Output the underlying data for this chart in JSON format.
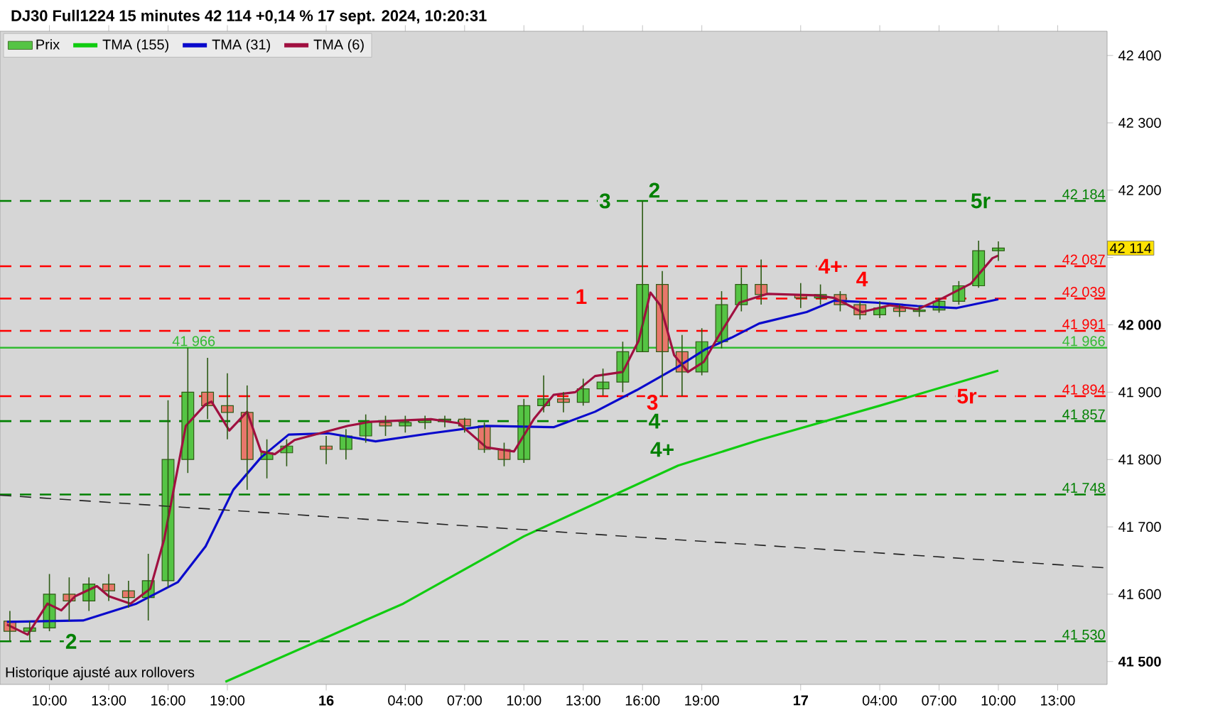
{
  "chart_data": {
    "type": "candlestick",
    "title": "DJ30 Full1224 15 minutes 42 114 +0,14 % 17 sept. 2024, 10:20:31",
    "annotations": [
      "Historique ajusté aux rollovers",
      "42 114",
      {
        "text": "41 966",
        "x": "2024-09-15T17:18",
        "y": 41966
      },
      {
        "text": "2",
        "x": "2024-09-15T11:06",
        "y": 41530
      },
      {
        "text": "3",
        "x": "2024-09-16T14:06",
        "y": 42184
      },
      {
        "text": "2",
        "x": "2024-09-16T16:36",
        "y": 42200
      },
      {
        "text": "1",
        "x": "2024-09-16T12:54",
        "y": 42042
      },
      {
        "text": "3",
        "x": "2024-09-16T16:30",
        "y": 41885
      },
      {
        "text": "4",
        "x": "2024-09-16T16:36",
        "y": 41857
      },
      {
        "text": "4+",
        "x": "2024-09-16T17:00",
        "y": 41815
      },
      {
        "text": "4+",
        "x": "2024-09-17T01:30",
        "y": 42087
      },
      {
        "text": "4",
        "x": "2024-09-17T03:06",
        "y": 42068
      },
      {
        "text": "5r",
        "x": "2024-09-17T09:06",
        "y": 42184
      },
      {
        "text": "5r",
        "x": "2024-09-17T08:24",
        "y": 41894
      }
    ],
    "xlim": [
      "2024-09-15T07:30",
      "2024-09-17T15:30"
    ],
    "ylim": [
      41466,
      42436
    ],
    "xticks": [
      {
        "value": "2024-09-15T10:00",
        "label": "10:00"
      },
      {
        "value": "2024-09-15T13:00",
        "label": "13:00"
      },
      {
        "value": "2024-09-15T16:00",
        "label": "16:00"
      },
      {
        "value": "2024-09-15T19:00",
        "label": "19:00"
      },
      {
        "value": "2024-09-16T00:00",
        "label": "**16**"
      },
      {
        "value": "2024-09-16T04:00",
        "label": "04:00"
      },
      {
        "value": "2024-09-16T07:00",
        "label": "07:00"
      },
      {
        "value": "2024-09-16T10:00",
        "label": "10:00"
      },
      {
        "value": "2024-09-16T13:00",
        "label": "13:00"
      },
      {
        "value": "2024-09-16T16:00",
        "label": "16:00"
      },
      {
        "value": "2024-09-16T19:00",
        "label": "19:00"
      },
      {
        "value": "2024-09-17T00:00",
        "label": "**17**"
      },
      {
        "value": "2024-09-17T04:00",
        "label": "04:00"
      },
      {
        "value": "2024-09-17T07:00",
        "label": "07:00"
      },
      {
        "value": "2024-09-17T10:00",
        "label": "10:00"
      },
      {
        "value": "2024-09-17T13:00",
        "label": "13:00"
      }
    ],
    "yticks": [
      {
        "value": 41500,
        "label": "**41 500**"
      },
      {
        "value": 41600,
        "label": "41 600"
      },
      {
        "value": 41700,
        "label": "41 700"
      },
      {
        "value": 41800,
        "label": "41 800"
      },
      {
        "value": 41900,
        "label": "41 900"
      },
      {
        "value": 42000,
        "label": "**42 000**"
      },
      {
        "value": 42100,
        "label": null
      },
      {
        "value": 42200,
        "label": "42 200"
      },
      {
        "value": 42300,
        "label": "42 300"
      },
      {
        "value": 42400,
        "label": "42 400"
      }
    ],
    "legend": "top left",
    "grid": false,
    "ref_lines": [
      {
        "axis": "y",
        "value": 42184,
        "label": "42 184",
        "color": "#008000",
        "line_style": "dashed"
      },
      {
        "axis": "y",
        "value": 42087,
        "label": "42 087",
        "color": "#ff0000",
        "line_style": "dashed"
      },
      {
        "axis": "y",
        "value": 42039,
        "label": "42 039",
        "color": "#ff0000",
        "line_style": "dashed"
      },
      {
        "axis": "y",
        "value": 41991,
        "label": "41 991",
        "color": "#ff0000",
        "line_style": "dashed"
      },
      {
        "axis": "y",
        "value": 41966,
        "label": "41 966",
        "color": "#33bb33",
        "line_style": "solid"
      },
      {
        "axis": "y",
        "value": 41894,
        "label": "41 894",
        "color": "#ff0000",
        "line_style": "dashed"
      },
      {
        "axis": "y",
        "value": 41857,
        "label": "41 857",
        "color": "#008000",
        "line_style": "dashed"
      },
      {
        "axis": "y",
        "value": 41748,
        "label": "41 748",
        "color": "#008000",
        "line_style": "dashed"
      },
      {
        "axis": "y",
        "value": 41530,
        "label": "41 530",
        "color": "#008000",
        "line_style": "dashed"
      }
    ],
    "series": [
      {
        "name": "Prix",
        "x": [
          "2024-09-15T08:00",
          "2024-09-15T09:00",
          "2024-09-15T10:00",
          "2024-09-15T11:00",
          "2024-09-15T12:00",
          "2024-09-15T13:00",
          "2024-09-15T14:00",
          "2024-09-15T15:00",
          "2024-09-15T16:00",
          "2024-09-15T17:00",
          "2024-09-15T18:00",
          "2024-09-15T19:00",
          "2024-09-15T20:00",
          "2024-09-15T21:00",
          "2024-09-15T22:00",
          "2024-09-16T00:00",
          "2024-09-16T01:00",
          "2024-09-16T02:00",
          "2024-09-16T03:00",
          "2024-09-16T04:00",
          "2024-09-16T05:00",
          "2024-09-16T06:00",
          "2024-09-16T07:00",
          "2024-09-16T08:00",
          "2024-09-16T09:00",
          "2024-09-16T10:00",
          "2024-09-16T11:00",
          "2024-09-16T12:00",
          "2024-09-16T13:00",
          "2024-09-16T14:00",
          "2024-09-16T15:00",
          "2024-09-16T16:00",
          "2024-09-16T17:00",
          "2024-09-16T18:00",
          "2024-09-16T19:00",
          "2024-09-16T20:00",
          "2024-09-16T21:00",
          "2024-09-16T22:00",
          "2024-09-17T00:00",
          "2024-09-17T01:00",
          "2024-09-17T02:00",
          "2024-09-17T03:00",
          "2024-09-17T04:00",
          "2024-09-17T05:00",
          "2024-09-17T06:00",
          "2024-09-17T07:00",
          "2024-09-17T08:00",
          "2024-09-17T09:00",
          "2024-09-17T10:00"
        ],
        "ohlc": [
          [
            41560,
            41575,
            41530,
            41545
          ],
          [
            41545,
            41560,
            41530,
            41550
          ],
          [
            41550,
            41630,
            41545,
            41600
          ],
          [
            41600,
            41625,
            41560,
            41590
          ],
          [
            41590,
            41625,
            41575,
            41615
          ],
          [
            41615,
            41630,
            41590,
            41605
          ],
          [
            41605,
            41620,
            41580,
            41595
          ],
          [
            41595,
            41660,
            41561,
            41620
          ],
          [
            41620,
            41888,
            41610,
            41800
          ],
          [
            41800,
            41966,
            41780,
            41900
          ],
          [
            41900,
            41951,
            41860,
            41880
          ],
          [
            41880,
            41928,
            41830,
            41870
          ],
          [
            41870,
            41910,
            41755,
            41800
          ],
          [
            41800,
            41830,
            41772,
            41810
          ],
          [
            41810,
            41830,
            41790,
            41820
          ],
          [
            41820,
            41835,
            41793,
            41815
          ],
          [
            41815,
            41845,
            41800,
            41835
          ],
          [
            41835,
            41867,
            41825,
            41855
          ],
          [
            41855,
            41865,
            41835,
            41850
          ],
          [
            41850,
            41865,
            41840,
            41855
          ],
          [
            41855,
            41865,
            41845,
            41858
          ],
          [
            41858,
            41865,
            41848,
            41860
          ],
          [
            41860,
            41862,
            41840,
            41850
          ],
          [
            41850,
            41855,
            41810,
            41815
          ],
          [
            41815,
            41825,
            41790,
            41800
          ],
          [
            41800,
            41890,
            41795,
            41880
          ],
          [
            41880,
            41925,
            41870,
            41890
          ],
          [
            41890,
            41900,
            41870,
            41885
          ],
          [
            41885,
            41920,
            41880,
            41905
          ],
          [
            41905,
            41935,
            41895,
            41915
          ],
          [
            41915,
            41975,
            41900,
            41960
          ],
          [
            41960,
            42184,
            41960,
            42060
          ],
          [
            42060,
            42080,
            41894,
            41960
          ],
          [
            41960,
            41985,
            41894,
            41930
          ],
          [
            41930,
            41995,
            41925,
            41975
          ],
          [
            41975,
            42050,
            41965,
            42030
          ],
          [
            42030,
            42085,
            42020,
            42060
          ],
          [
            42060,
            42097,
            42030,
            42045
          ],
          [
            42045,
            42062,
            42025,
            42040
          ],
          [
            42040,
            42060,
            42030,
            42045
          ],
          [
            42045,
            42050,
            42020,
            42030
          ],
          [
            42030,
            42035,
            42008,
            42015
          ],
          [
            42015,
            42035,
            42010,
            42025
          ],
          [
            42025,
            42030,
            42012,
            42020
          ],
          [
            42020,
            42028,
            42012,
            42022
          ],
          [
            42022,
            42040,
            42018,
            42035
          ],
          [
            42035,
            42065,
            42030,
            42058
          ],
          [
            42058,
            42125,
            42055,
            42110
          ],
          [
            42110,
            42124,
            42095,
            42114
          ]
        ],
        "colors": [
          "#e8776b",
          "#55c444",
          "#55c444",
          "#e8776b",
          "#55c444",
          "#e8776b",
          "#e8776b",
          "#55c444",
          "#55c444",
          "#55c444",
          "#e8776b",
          "#e8776b",
          "#e8776b",
          "#55c444",
          "#55c444",
          "#e8776b",
          "#55c444",
          "#55c444",
          "#e8776b",
          "#55c444",
          "#55c444",
          "#55c444",
          "#e8776b",
          "#e8776b",
          "#e8776b",
          "#55c444",
          "#55c444",
          "#e8776b",
          "#55c444",
          "#55c444",
          "#55c444",
          "#55c444",
          "#e8776b",
          "#e8776b",
          "#55c444",
          "#55c444",
          "#55c444",
          "#e8776b",
          "#e8776b",
          "#55c444",
          "#e8776b",
          "#e8776b",
          "#55c444",
          "#e8776b",
          "#55c444",
          "#55c444",
          "#55c444",
          "#55c444",
          "#55c444"
        ],
        "color": "#2d5a14"
      },
      {
        "type": "line",
        "name": "TMA (155)",
        "color": "#11cc11",
        "x": [
          "2024-09-15T18:54",
          "2024-09-16T03:54",
          "2024-09-16T10:00",
          "2024-09-16T17:48",
          "2024-09-16T21:54",
          "2024-09-17T04:00",
          "2024-09-17T10:00"
        ],
        "values": [
          41470,
          41586,
          41686,
          41791,
          41829,
          41880,
          41932
        ]
      },
      {
        "type": "line",
        "name": "TMA (31)",
        "color": "#0a0acc",
        "x": [
          "2024-09-15T07:51",
          "2024-09-15T11:42",
          "2024-09-15T14:24",
          "2024-09-15T16:30",
          "2024-09-15T17:54",
          "2024-09-15T19:18",
          "2024-09-15T20:42",
          "2024-09-15T22:06",
          "2024-09-16T00:06",
          "2024-09-16T02:30",
          "2024-09-16T05:18",
          "2024-09-16T08:06",
          "2024-09-16T11:30",
          "2024-09-16T13:36",
          "2024-09-16T15:42",
          "2024-09-16T17:48",
          "2024-09-16T19:12",
          "2024-09-16T20:30",
          "2024-09-16T21:54",
          "2024-09-17T00:18",
          "2024-09-17T01:42",
          "2024-09-17T03:48",
          "2024-09-17T05:54",
          "2024-09-17T07:54",
          "2024-09-17T10:00"
        ],
        "values": [
          41559,
          41561,
          41586,
          41618,
          41671,
          41755,
          41803,
          41837,
          41839,
          41827,
          41839,
          41850,
          41848,
          41871,
          41903,
          41938,
          41964,
          41981,
          42002,
          42019,
          42036,
          42033,
          42028,
          42025,
          42038
        ]
      },
      {
        "type": "line",
        "name": "TMA (6)",
        "color": "#a01040",
        "x": [
          "2024-09-15T07:51",
          "2024-09-15T08:54",
          "2024-09-15T09:54",
          "2024-09-15T10:36",
          "2024-09-15T11:18",
          "2024-09-15T12:24",
          "2024-09-15T13:00",
          "2024-09-15T14:06",
          "2024-09-15T15:06",
          "2024-09-15T15:48",
          "2024-09-15T16:54",
          "2024-09-15T17:54",
          "2024-09-15T18:12",
          "2024-09-15T19:06",
          "2024-09-15T20:00",
          "2024-09-15T20:42",
          "2024-09-15T21:24",
          "2024-09-15T22:24",
          "2024-09-16T01:06",
          "2024-09-16T02:12",
          "2024-09-16T03:54",
          "2024-09-16T05:18",
          "2024-09-16T06:42",
          "2024-09-16T08:06",
          "2024-09-16T09:30",
          "2024-09-16T10:30",
          "2024-09-16T11:30",
          "2024-09-16T12:36",
          "2024-09-16T13:36",
          "2024-09-16T15:00",
          "2024-09-16T15:48",
          "2024-09-16T16:24",
          "2024-09-16T16:54",
          "2024-09-16T17:36",
          "2024-09-16T18:18",
          "2024-09-16T19:06",
          "2024-09-16T19:48",
          "2024-09-16T20:54",
          "2024-09-16T22:18",
          "2024-09-17T00:42",
          "2024-09-17T01:42",
          "2024-09-17T03:06",
          "2024-09-17T04:30",
          "2024-09-17T05:54",
          "2024-09-17T07:12",
          "2024-09-17T08:36",
          "2024-09-17T09:42",
          "2024-09-17T10:00"
        ],
        "values": [
          41555,
          41540,
          41586,
          41576,
          41597,
          41612,
          41597,
          41586,
          41608,
          41681,
          41850,
          41882,
          41886,
          41843,
          41871,
          41812,
          41808,
          41829,
          41850,
          41856,
          41858,
          41860,
          41854,
          41818,
          41812,
          41860,
          41896,
          41900,
          41924,
          41930,
          41976,
          42048,
          42029,
          41955,
          41930,
          41945,
          41981,
          42033,
          42046,
          42044,
          42040,
          42019,
          42029,
          42023,
          42040,
          42061,
          42099,
          42103
        ]
      },
      {
        "type": "line",
        "color": "#222222",
        "line_style": "dashed",
        "x": [
          "2024-09-15T07:30",
          "2024-09-17T15:30"
        ],
        "values": [
          41747,
          41639
        ]
      }
    ]
  }
}
